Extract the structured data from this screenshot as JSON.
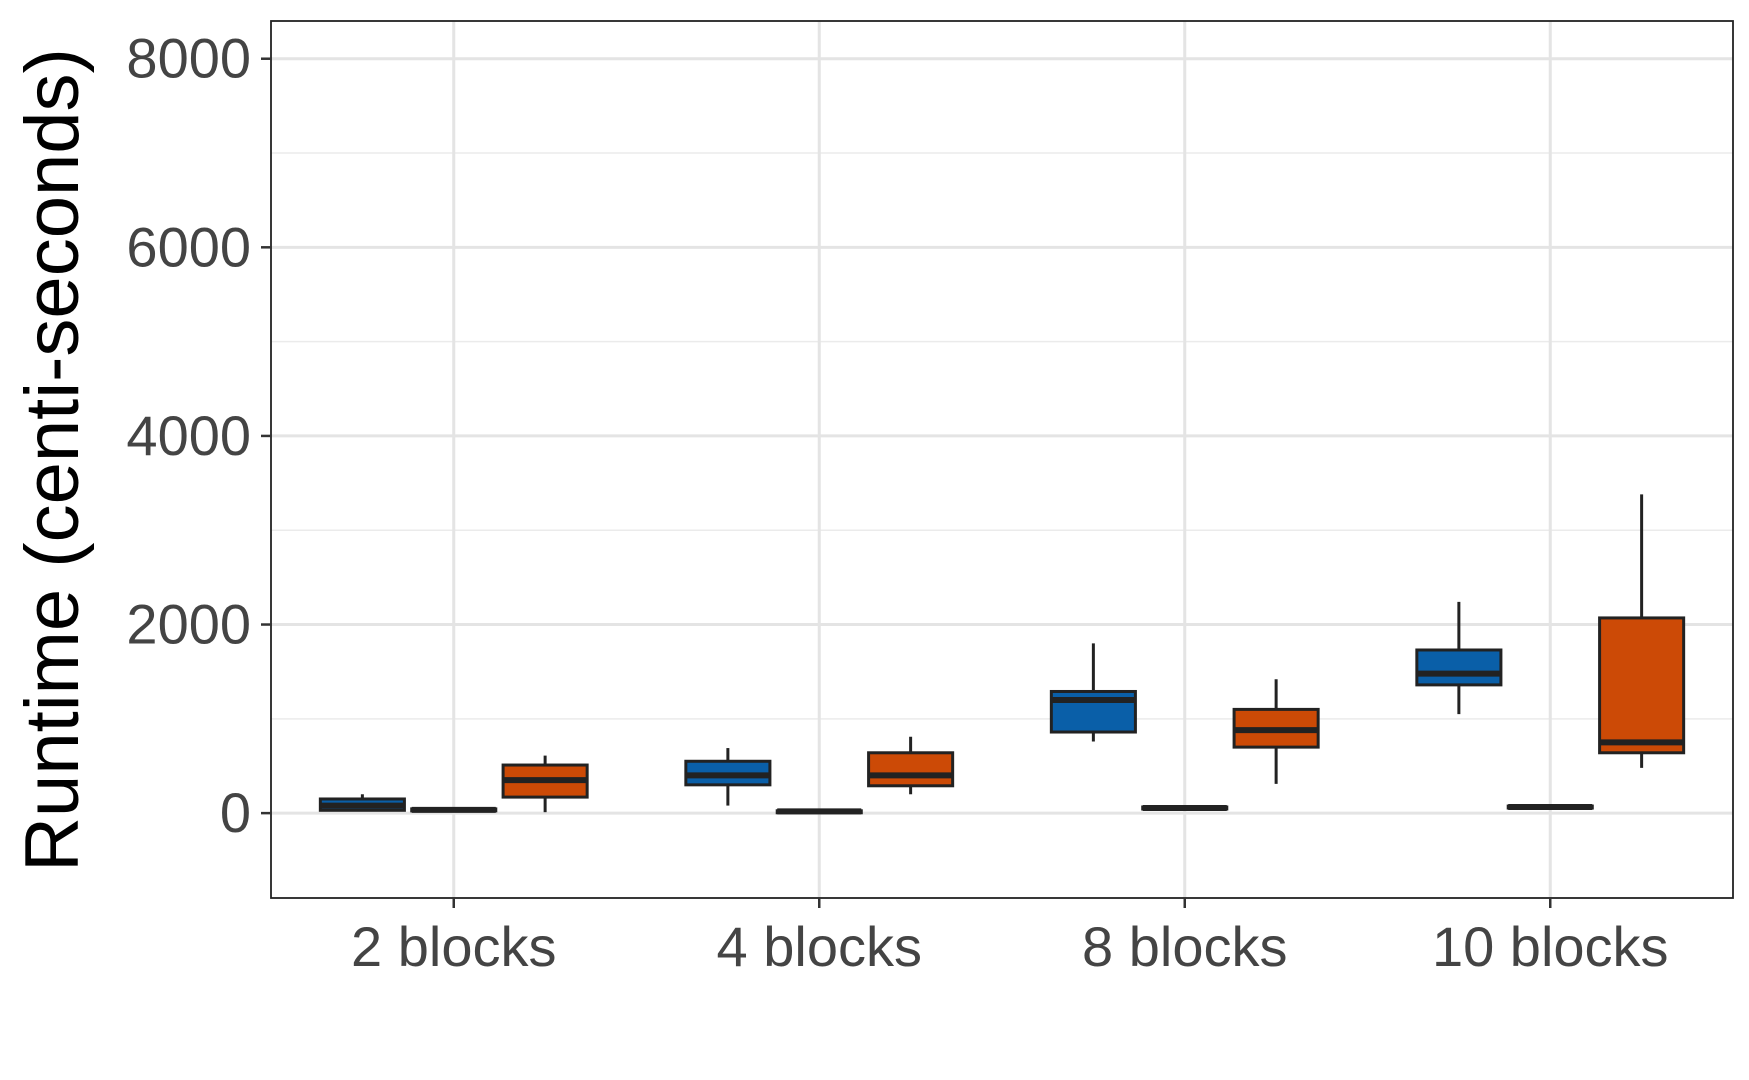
{
  "chart_data": {
    "type": "boxplot",
    "title": "",
    "xlabel": "",
    "ylabel": "Runtime (centi-seconds)",
    "ylim": [
      -900,
      8400
    ],
    "yticks": [
      0,
      2000,
      4000,
      6000,
      8000
    ],
    "grid": true,
    "legend": "none",
    "categories": [
      "2 blocks",
      "4 blocks",
      "8 blocks",
      "10 blocks"
    ],
    "series": [
      {
        "color": "#0a5fa8",
        "boxes": [
          {
            "min": 20,
            "q1": 30,
            "median": 80,
            "q3": 150,
            "max": 200
          },
          {
            "min": 80,
            "q1": 300,
            "median": 400,
            "q3": 550,
            "max": 690
          },
          {
            "min": 760,
            "q1": 860,
            "median": 1200,
            "q3": 1290,
            "max": 1800
          },
          {
            "min": 1050,
            "q1": 1360,
            "median": 1480,
            "q3": 1730,
            "max": 2240
          }
        ]
      },
      {
        "color": "#2b2b2b",
        "boxes": [
          {
            "min": 20,
            "q1": 25,
            "median": 35,
            "q3": 45,
            "max": 55
          },
          {
            "min": 10,
            "q1": 12,
            "median": 18,
            "q3": 25,
            "max": 30
          },
          {
            "min": 40,
            "q1": 45,
            "median": 55,
            "q3": 65,
            "max": 75
          },
          {
            "min": 50,
            "q1": 55,
            "median": 65,
            "q3": 75,
            "max": 85
          }
        ]
      },
      {
        "color": "#cc4a06",
        "boxes": [
          {
            "min": 10,
            "q1": 170,
            "median": 350,
            "q3": 510,
            "max": 610
          },
          {
            "min": 200,
            "q1": 290,
            "median": 400,
            "q3": 640,
            "max": 810
          },
          {
            "min": 310,
            "q1": 700,
            "median": 880,
            "q3": 1100,
            "max": 1420
          },
          {
            "min": 480,
            "q1": 640,
            "median": 750,
            "q3": 2070,
            "max": 3380
          }
        ]
      }
    ]
  }
}
